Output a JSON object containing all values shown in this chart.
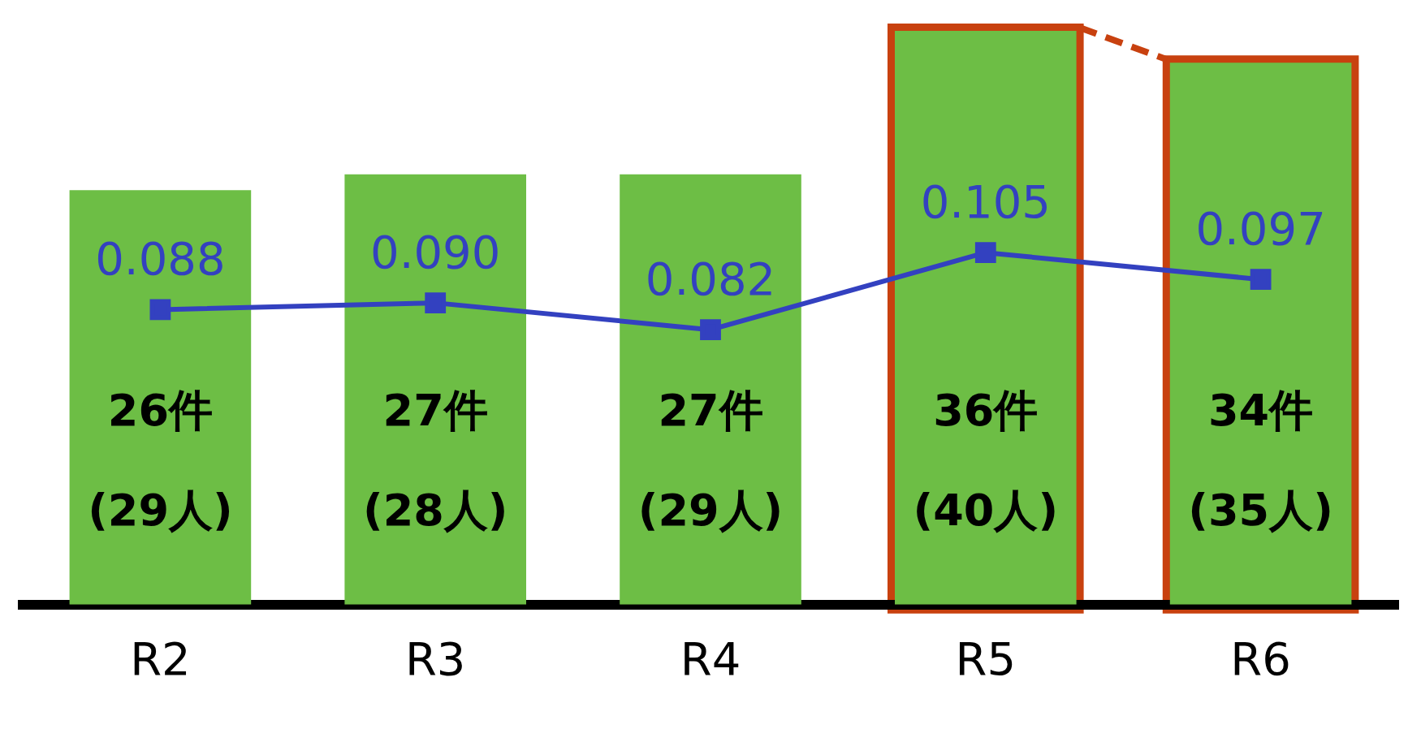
{
  "chart_data": {
    "type": "bar",
    "categories": [
      "R2",
      "R3",
      "R4",
      "R5",
      "R6"
    ],
    "series": [
      {
        "color": "#6dbe45",
        "values": [
          26,
          27,
          27,
          36,
          34
        ],
        "value_labels": [
          "26件\n(29人)",
          "27件\n(28人)",
          "27件\n(29人)",
          "36件\n(40人)",
          "34件\n(35人)"
        ]
      },
      {
        "type": "line",
        "axis": "y2",
        "color": "#3341c0",
        "marker": "square",
        "line_style": "solid",
        "values": [
          0.088,
          0.09,
          0.082,
          0.105,
          0.097
        ],
        "value_labels": [
          "0.088",
          "0.090",
          "0.082",
          "0.105",
          "0.097"
        ]
      }
    ],
    "tick_labels": "x",
    "grid": false,
    "legend": false
  }
}
